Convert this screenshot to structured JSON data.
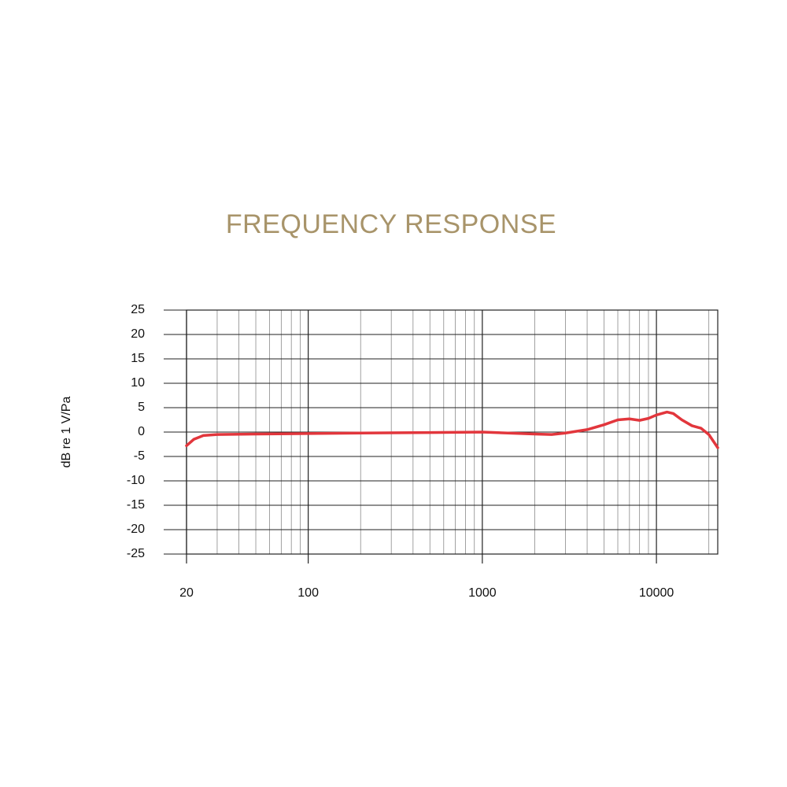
{
  "chart_data": {
    "type": "line",
    "title": "FREQUENCY RESPONSE",
    "y_label": "dB re 1 V/Pa",
    "x": [
      20,
      22,
      25,
      30,
      50,
      100,
      200,
      500,
      1000,
      2000,
      2500,
      3000,
      4000,
      5000,
      6000,
      7000,
      8000,
      9000,
      10000,
      11500,
      12500,
      14000,
      16000,
      18000,
      20000,
      22500
    ],
    "values": [
      -2.8,
      -1.5,
      -0.7,
      -0.5,
      -0.4,
      -0.3,
      -0.2,
      -0.1,
      0,
      -0.4,
      -0.5,
      -0.2,
      0.5,
      1.5,
      2.5,
      2.7,
      2.4,
      2.8,
      3.5,
      4.1,
      3.8,
      2.5,
      1.3,
      0.8,
      -0.5,
      -3.2
    ],
    "color": "#e2363c",
    "log_x": true,
    "grid": true,
    "xlim": [
      20,
      22500
    ],
    "xticks": [
      20,
      100,
      1000,
      10000
    ],
    "xminor": [
      30,
      40,
      50,
      60,
      70,
      80,
      90,
      200,
      300,
      400,
      500,
      600,
      700,
      800,
      900,
      2000,
      3000,
      4000,
      5000,
      6000,
      7000,
      8000,
      9000,
      20000
    ],
    "ylim": [
      -25,
      25
    ],
    "yticks": [
      25,
      20,
      15,
      10,
      5,
      0,
      -5,
      -10,
      -15,
      -20,
      -25
    ]
  }
}
